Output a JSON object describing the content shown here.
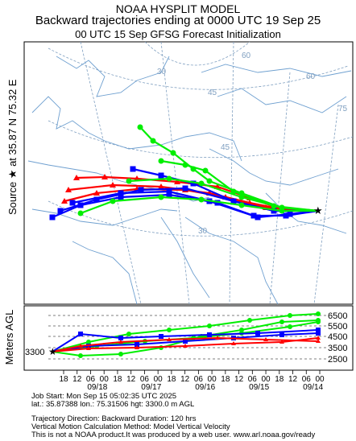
{
  "header": {
    "line1": "NOAA HYSPLIT MODEL",
    "line2": "Backward trajectories ending at 0000 UTC 19 Sep 25",
    "line3": "00 UTC 15 Sep    GFSG  Forecast Initialization"
  },
  "side_label": "Source ★ at    35.87 N    75.32 E",
  "map": {
    "latitude_labels": [
      "60",
      "45",
      "30"
    ],
    "longitude_labels": [
      "30",
      "45",
      "60",
      "75"
    ],
    "source_icon": "star-icon"
  },
  "height_panel": {
    "ylabel": "Meters AGL",
    "source_height": "3300",
    "levels": [
      "6500",
      "5500",
      "4500",
      "3500",
      "2500"
    ],
    "time_ticks": [
      "18",
      "12",
      "06",
      "00",
      "18",
      "12",
      "06",
      "00",
      "18",
      "12",
      "06",
      "00",
      "18",
      "12",
      "06",
      "00",
      "18",
      "12",
      "06",
      "00"
    ],
    "date_labels": [
      "09/18",
      "09/17",
      "09/16",
      "09/15",
      "09/14"
    ]
  },
  "footer": {
    "job_start": "Job Start: Mon Sep 15 05:02:35 UTC 2025",
    "location": "lat.: 35.87388   lon.: 75.31506   hgt: 3300.0 m AGL",
    "direction": "Trajectory Direction: Backward        Duration: 120 hrs",
    "vertical": "Vertical Motion Calculation Method: Model Vertical Velocity",
    "disclaimer": "This is not a NOAA product.It was produced by a web user. www.arl.noaa.gov/ready"
  },
  "colors": {
    "red": "#ff0000",
    "blue": "#0000ff",
    "green": "#00ee00",
    "map_line": "#6fa0d0",
    "graticule": "#7f9fc0"
  }
}
